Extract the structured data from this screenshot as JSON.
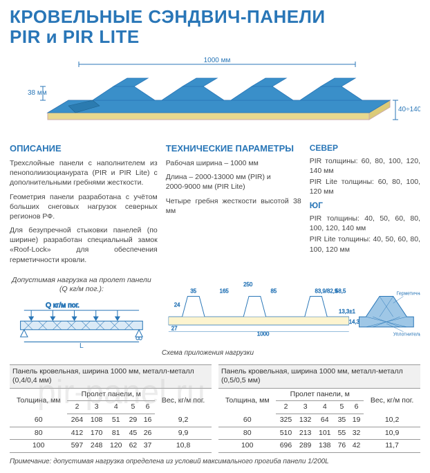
{
  "title_line1": "КРОВЕЛЬНЫЕ СЭНДВИЧ-ПАНЕЛИ",
  "title_line2": "PIR и PIR LITE",
  "diagram": {
    "top_dim": "1000 мм",
    "left_dim": "38 мм",
    "right_dim": "40÷140 мм",
    "panel_color": "#3a8fc9",
    "panel_stroke": "#2976b7",
    "core_color": "#f4e8a8",
    "dim_color": "#2976b7"
  },
  "description": {
    "heading": "ОПИСАНИЕ",
    "p1": "Трехслойные панели с наполнителем из пенополиизоцианурата (PIR и PIR Lite) с дополнительными гребнями жесткости.",
    "p2": "Геометрия панели разработана с учётом больших снеговых нагрузок северных регионов РФ.",
    "p3": "Для безупречной стыковки панелей (по ширине) разработан специальный замок «Roof-Lock» для обеспечения герметичности кровли."
  },
  "tech": {
    "heading": "ТЕХНИЧЕСКИЕ ПАРАМЕТРЫ",
    "l1": "Рабочая ширина – 1000 мм",
    "l2": "Длина – 2000-13000 мм (PIR) и",
    "l3": "2000-9000 мм (PIR Lite)",
    "l4": "Четыре гребня жесткости высотой 38 мм"
  },
  "north": {
    "heading": "СЕВЕР",
    "l1": "PIR толщины: 60, 80, 100, 120, 140 мм",
    "l2": "PIR Lite толщины: 60, 80, 100, 120 мм"
  },
  "south": {
    "heading": "ЮГ",
    "l1": "PIR толщины: 40, 50, 60, 80, 100, 120, 140 мм",
    "l2": "PIR Lite толщины: 40, 50, 60, 80, 100, 120 мм"
  },
  "section_diagram": {
    "detail_label1": "Герметичная лента",
    "detail_label2": "Уплотнительная лента",
    "dim_24": "24",
    "dim_27": "27",
    "dim_35": "35",
    "dim_165": "165",
    "dim_85": "85",
    "dim_250": "250",
    "dim_839": "83,9/82,9",
    "dim_585": "58,5",
    "dim_133": "13,3±1",
    "dim_143": "14,3",
    "dim_1000": "1000",
    "node_fill": "#9fc7e6"
  },
  "load": {
    "title": "Допустимая нагрузка на пролет панели (Q кг/м пог.):",
    "q_label": "Q кг/м пог.",
    "l_label": "L",
    "caption": "Схема приложения нагрузки"
  },
  "table1": {
    "caption": "Панель кровельная, ширина 1000 мм, металл-металл (0,4/0,4 мм)",
    "col_thickness": "Толщина, мм",
    "col_span": "Пролет панели, м",
    "col_weight": "Вес, кг/м пог.",
    "spans": [
      "2",
      "3",
      "4",
      "5",
      "6"
    ],
    "rows": [
      {
        "t": "60",
        "v": [
          "264",
          "108",
          "51",
          "29",
          "16"
        ],
        "w": "9,2"
      },
      {
        "t": "80",
        "v": [
          "412",
          "170",
          "81",
          "45",
          "26"
        ],
        "w": "9,9"
      },
      {
        "t": "100",
        "v": [
          "597",
          "248",
          "120",
          "62",
          "37"
        ],
        "w": "10,8"
      }
    ]
  },
  "table2": {
    "caption": "Панель кровельная, ширина 1000 мм, металл-металл (0,5/0,5 мм)",
    "col_thickness": "Толщина, мм",
    "col_span": "Пролет панели, м",
    "col_weight": "Вес, кг/м пог.",
    "spans": [
      "2",
      "3",
      "4",
      "5",
      "6"
    ],
    "rows": [
      {
        "t": "60",
        "v": [
          "325",
          "132",
          "64",
          "35",
          "19"
        ],
        "w": "10,2"
      },
      {
        "t": "80",
        "v": [
          "510",
          "213",
          "101",
          "55",
          "32"
        ],
        "w": "10,9"
      },
      {
        "t": "100",
        "v": [
          "696",
          "289",
          "138",
          "76",
          "42"
        ],
        "w": "11,7"
      }
    ]
  },
  "note": "Примечание: допустимая нагрузка определена из условий максимального прогиба панели 1/200L",
  "colors": {
    "accent": "#2976b7",
    "text": "#444444"
  }
}
